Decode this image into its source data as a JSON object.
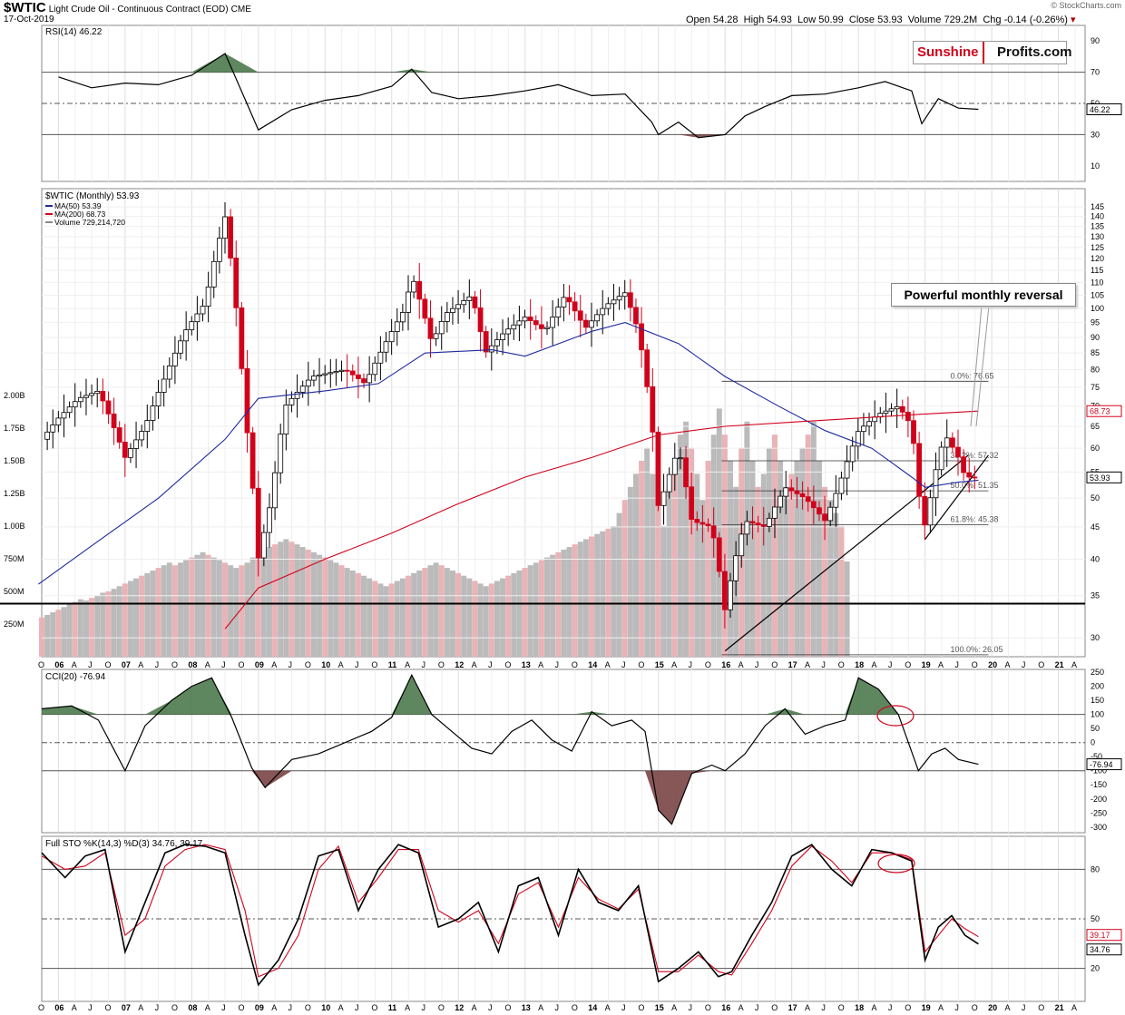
{
  "header": {
    "symbol": "$WTIC",
    "name": "Light Crude Oil - Continuous Contract (EOD)",
    "exchange": "CME",
    "date": "17-Oct-2019",
    "open_label": "Open",
    "open": "54.28",
    "high_label": "High",
    "high": "54.93",
    "low_label": "Low",
    "low": "50.99",
    "close_label": "Close",
    "close": "53.93",
    "volume_label": "Volume",
    "volume": "729.2M",
    "chg_label": "Chg",
    "chg": "-0.14 (-0.26%)",
    "credit": "© StockCharts.com"
  },
  "brand": {
    "part1": "Sunshine",
    "part2": "Profits.com"
  },
  "annotation": {
    "text": "Powerful monthly reversal"
  },
  "colors": {
    "up": "#ffffff",
    "down": "#d0021b",
    "ma50": "#1f2a9e",
    "ma200": "#d0021b",
    "vol_grey": "#bbbbbb",
    "vol_pink": "#e8b4b8",
    "positive_fill": "#4e7a4e",
    "negative_fill": "#7a4444",
    "grid": "#dddddd"
  },
  "chart_data": [
    {
      "panel": "rsi",
      "type": "line",
      "title": "RSI(14) 46.22",
      "last_label": "46.22",
      "ylim": [
        0,
        100
      ],
      "y_ticks": [
        10,
        30,
        50,
        70,
        90
      ],
      "levels": [
        70,
        50,
        30
      ],
      "x": [
        2006.0,
        2006.5,
        2007.0,
        2007.5,
        2008.0,
        2008.5,
        2009.0,
        2009.5,
        2010.0,
        2010.5,
        2011.0,
        2011.3,
        2011.6,
        2012.0,
        2012.5,
        2013.0,
        2013.5,
        2014.0,
        2014.5,
        2014.9,
        2015.0,
        2015.3,
        2015.6,
        2016.0,
        2016.3,
        2016.6,
        2017.0,
        2017.5,
        2018.0,
        2018.4,
        2018.8,
        2018.95,
        2019.2,
        2019.5,
        2019.8
      ],
      "values": [
        67,
        60,
        63,
        62,
        68,
        82,
        33,
        46,
        52,
        55,
        61,
        72,
        57,
        53,
        55,
        58,
        62,
        55,
        56,
        38,
        30,
        38,
        28,
        30,
        42,
        48,
        55,
        56,
        60,
        64,
        58,
        37,
        53,
        47,
        46.22
      ]
    },
    {
      "panel": "price",
      "type": "candlestick",
      "title": "$WTIC (Monthly) 53.93",
      "last_label": "53.93",
      "y_scale": "log",
      "ylim": [
        28,
        155
      ],
      "y_ticks": [
        30,
        35,
        40,
        45,
        50,
        55,
        60,
        65,
        70,
        75,
        80,
        85,
        90,
        95,
        100,
        105,
        110,
        115,
        120,
        125,
        130,
        135,
        140,
        145
      ],
      "x_ticks": [
        "O",
        "06",
        "A",
        "J",
        "O",
        "07",
        "A",
        "J",
        "O",
        "08",
        "A",
        "J",
        "O",
        "09",
        "A",
        "J",
        "O",
        "10",
        "A",
        "J",
        "O",
        "11",
        "A",
        "J",
        "O",
        "12",
        "A",
        "J",
        "O",
        "13",
        "A",
        "J",
        "O",
        "14",
        "A",
        "J",
        "O",
        "15",
        "A",
        "J",
        "O",
        "16",
        "A",
        "J",
        "O",
        "17",
        "A",
        "J",
        "O",
        "18",
        "A",
        "J",
        "O",
        "19",
        "A",
        "J",
        "O",
        "20",
        "A",
        "J",
        "O",
        "21",
        "A"
      ],
      "legend": [
        {
          "name": "MA(50) 53.39",
          "color": "#1f2a9e"
        },
        {
          "name": "MA(200) 68.73",
          "color": "#d0021b"
        },
        {
          "name": "Volume 729,214,720",
          "color": "#888888"
        }
      ],
      "ma200_label": "68.73",
      "close_points": [
        [
          2005.75,
          62
        ],
        [
          2006.0,
          67
        ],
        [
          2006.3,
          72
        ],
        [
          2006.6,
          74
        ],
        [
          2007.0,
          58
        ],
        [
          2007.3,
          65
        ],
        [
          2007.6,
          78
        ],
        [
          2007.9,
          92
        ],
        [
          2008.2,
          102
        ],
        [
          2008.5,
          140
        ],
        [
          2008.8,
          68
        ],
        [
          2009.0,
          40
        ],
        [
          2009.2,
          50
        ],
        [
          2009.4,
          70
        ],
        [
          2009.8,
          78
        ],
        [
          2010.3,
          80
        ],
        [
          2010.6,
          76
        ],
        [
          2010.9,
          88
        ],
        [
          2011.2,
          100
        ],
        [
          2011.3,
          113
        ],
        [
          2011.6,
          88
        ],
        [
          2011.8,
          98
        ],
        [
          2012.2,
          105
        ],
        [
          2012.4,
          85
        ],
        [
          2012.7,
          92
        ],
        [
          2013.0,
          97
        ],
        [
          2013.3,
          92
        ],
        [
          2013.6,
          105
        ],
        [
          2013.9,
          93
        ],
        [
          2014.2,
          101
        ],
        [
          2014.5,
          106
        ],
        [
          2014.7,
          92
        ],
        [
          2014.9,
          66
        ],
        [
          2015.0,
          48
        ],
        [
          2015.3,
          60
        ],
        [
          2015.5,
          46
        ],
        [
          2015.8,
          45
        ],
        [
          2016.0,
          33
        ],
        [
          2016.1,
          38
        ],
        [
          2016.3,
          46
        ],
        [
          2016.6,
          45
        ],
        [
          2016.9,
          52
        ],
        [
          2017.2,
          50
        ],
        [
          2017.5,
          46
        ],
        [
          2017.7,
          52
        ],
        [
          2018.0,
          64
        ],
        [
          2018.3,
          68
        ],
        [
          2018.6,
          70
        ],
        [
          2018.8,
          65
        ],
        [
          2018.9,
          51
        ],
        [
          2019.0,
          45
        ],
        [
          2019.2,
          58
        ],
        [
          2019.3,
          63
        ],
        [
          2019.5,
          58
        ],
        [
          2019.6,
          54
        ],
        [
          2019.7,
          54
        ],
        [
          2019.8,
          53.93
        ]
      ],
      "ma50": [
        [
          2005.7,
          36.5
        ],
        [
          2006.5,
          42
        ],
        [
          2007.5,
          50
        ],
        [
          2008.5,
          62
        ],
        [
          2009.0,
          72
        ],
        [
          2010.0,
          74
        ],
        [
          2010.8,
          76
        ],
        [
          2011.5,
          85
        ],
        [
          2012.5,
          86
        ],
        [
          2013.0,
          84
        ],
        [
          2014.0,
          92
        ],
        [
          2014.5,
          95
        ],
        [
          2015.3,
          88
        ],
        [
          2016.0,
          78
        ],
        [
          2016.8,
          70
        ],
        [
          2017.5,
          64
        ],
        [
          2018.2,
          60
        ],
        [
          2018.8,
          54
        ],
        [
          2019.0,
          52
        ],
        [
          2019.5,
          53
        ],
        [
          2019.8,
          53.39
        ]
      ],
      "ma200": [
        [
          2008.5,
          31
        ],
        [
          2009.0,
          36
        ],
        [
          2010.0,
          40
        ],
        [
          2011.0,
          44
        ],
        [
          2012.0,
          49
        ],
        [
          2013.0,
          54
        ],
        [
          2014.0,
          58
        ],
        [
          2015.0,
          63
        ],
        [
          2016.0,
          65
        ],
        [
          2017.0,
          66
        ],
        [
          2018.0,
          67
        ],
        [
          2019.0,
          68
        ],
        [
          2019.8,
          68.73
        ]
      ],
      "fib_levels": [
        {
          "label": "0.0%: 76.65",
          "value": 76.65
        },
        {
          "label": "38.2%: 57.32",
          "value": 57.32
        },
        {
          "label": "50.0%: 51.35",
          "value": 51.35
        },
        {
          "label": "61.8%: 45.38",
          "value": 45.38
        },
        {
          "label": "100.0%: 26.05",
          "value": 26.05
        }
      ],
      "horizontal_line": 34
    },
    {
      "panel": "volume",
      "type": "bar",
      "y_ticks_labels": [
        "250M",
        "500M",
        "750M",
        "1.00B",
        "1.25B",
        "1.50B",
        "1.75B",
        "2.00B"
      ],
      "y_ticks": [
        250,
        500,
        750,
        1000,
        1250,
        1500,
        1750,
        2000
      ],
      "ylim": [
        0,
        2150
      ],
      "x_start": 2005.75,
      "x_step": 0.0833,
      "values": [
        300,
        320,
        340,
        360,
        380,
        400,
        420,
        440,
        430,
        450,
        470,
        490,
        500,
        520,
        540,
        560,
        580,
        600,
        620,
        640,
        660,
        680,
        700,
        720,
        700,
        720,
        740,
        760,
        780,
        800,
        780,
        760,
        740,
        720,
        700,
        680,
        700,
        720,
        760,
        800,
        820,
        840,
        860,
        880,
        900,
        880,
        860,
        840,
        820,
        800,
        780,
        760,
        740,
        720,
        700,
        680,
        660,
        640,
        620,
        600,
        580,
        560,
        540,
        560,
        580,
        600,
        620,
        640,
        660,
        680,
        700,
        720,
        700,
        680,
        660,
        640,
        620,
        600,
        580,
        560,
        540,
        560,
        580,
        600,
        620,
        640,
        660,
        680,
        700,
        720,
        740,
        760,
        780,
        800,
        820,
        840,
        860,
        880,
        900,
        920,
        940,
        960,
        980,
        1000,
        1100,
        1200,
        1300,
        1400,
        1500,
        1600,
        1400,
        1200,
        1000,
        1300,
        1500,
        1700,
        1800,
        1600,
        1400,
        1200,
        1500,
        1700,
        1900,
        1700,
        1500,
        1300,
        1600,
        1800,
        1500,
        1300,
        1400,
        1600,
        1700,
        1500,
        1300,
        1400,
        1500,
        1600,
        1700,
        1800,
        1500,
        1300,
        1200,
        1100,
        1000,
        729
      ]
    },
    {
      "panel": "cci",
      "type": "line",
      "title": "CCI(20) -76.94",
      "last_label": "-76.94",
      "ylim": [
        -320,
        260
      ],
      "y_ticks": [
        250,
        200,
        150,
        100,
        50,
        0,
        -50,
        -100,
        -150,
        -200,
        -250,
        -300
      ],
      "levels": [
        100,
        0,
        -100
      ],
      "x": [
        2005.75,
        2006.2,
        2006.6,
        2007.0,
        2007.3,
        2007.7,
        2008.0,
        2008.3,
        2008.6,
        2008.9,
        2009.1,
        2009.5,
        2009.9,
        2010.3,
        2010.7,
        2011.0,
        2011.3,
        2011.6,
        2011.9,
        2012.2,
        2012.5,
        2012.8,
        2013.1,
        2013.4,
        2013.7,
        2014.0,
        2014.3,
        2014.6,
        2014.8,
        2015.0,
        2015.2,
        2015.5,
        2015.8,
        2016.0,
        2016.3,
        2016.6,
        2016.9,
        2017.2,
        2017.5,
        2017.8,
        2018.0,
        2018.3,
        2018.6,
        2018.9,
        2019.1,
        2019.3,
        2019.5,
        2019.8
      ],
      "values": [
        120,
        130,
        80,
        -100,
        60,
        150,
        200,
        230,
        90,
        -90,
        -160,
        -60,
        -40,
        0,
        40,
        90,
        240,
        100,
        40,
        -20,
        -40,
        40,
        80,
        10,
        -30,
        110,
        60,
        80,
        40,
        -240,
        -290,
        -110,
        -80,
        -100,
        -40,
        60,
        120,
        30,
        60,
        80,
        230,
        190,
        100,
        -100,
        -40,
        -20,
        -60,
        -76.94
      ]
    },
    {
      "panel": "sto",
      "type": "line",
      "title": "Full STO %K(14,3) %D(3) 34.76, 39.17",
      "k_label": "34.76",
      "d_label": "39.17",
      "ylim": [
        0,
        100
      ],
      "y_ticks": [
        20,
        50,
        80
      ],
      "levels": [
        80,
        50,
        20
      ],
      "x": [
        2005.75,
        2006.1,
        2006.4,
        2006.7,
        2007.0,
        2007.3,
        2007.6,
        2007.9,
        2008.2,
        2008.5,
        2008.8,
        2009.0,
        2009.3,
        2009.6,
        2009.9,
        2010.2,
        2010.5,
        2010.8,
        2011.1,
        2011.4,
        2011.7,
        2012.0,
        2012.3,
        2012.6,
        2012.9,
        2013.2,
        2013.5,
        2013.8,
        2014.1,
        2014.4,
        2014.7,
        2015.0,
        2015.3,
        2015.6,
        2015.9,
        2016.1,
        2016.4,
        2016.7,
        2017.0,
        2017.3,
        2017.6,
        2017.9,
        2018.2,
        2018.5,
        2018.8,
        2019.0,
        2019.2,
        2019.4,
        2019.6,
        2019.8
      ],
      "k": [
        90,
        75,
        88,
        92,
        30,
        60,
        90,
        95,
        94,
        90,
        40,
        10,
        25,
        50,
        88,
        92,
        55,
        80,
        95,
        90,
        45,
        50,
        60,
        30,
        70,
        75,
        40,
        80,
        60,
        55,
        70,
        12,
        20,
        30,
        15,
        18,
        40,
        60,
        88,
        95,
        80,
        70,
        92,
        90,
        85,
        25,
        45,
        52,
        40,
        34.76
      ],
      "d": [
        88,
        80,
        82,
        90,
        40,
        50,
        82,
        92,
        95,
        92,
        55,
        15,
        20,
        40,
        80,
        94,
        60,
        75,
        92,
        92,
        55,
        48,
        55,
        35,
        65,
        72,
        45,
        75,
        62,
        56,
        68,
        18,
        18,
        28,
        18,
        16,
        35,
        55,
        82,
        94,
        85,
        72,
        90,
        90,
        86,
        30,
        40,
        50,
        44,
        39.17
      ]
    }
  ]
}
